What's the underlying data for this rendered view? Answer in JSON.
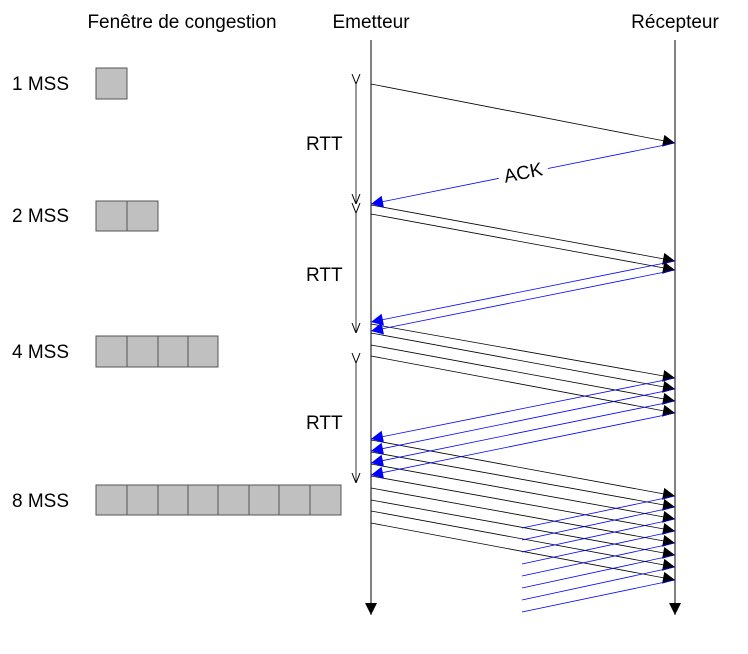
{
  "headers": {
    "window": "Fenêtre de congestion",
    "sender": "Emetteur",
    "receiver": "Récepteur"
  },
  "rounds": [
    {
      "label": "1 MSS",
      "segments": 1
    },
    {
      "label": "2 MSS",
      "segments": 2
    },
    {
      "label": "4 MSS",
      "segments": 4
    },
    {
      "label": "8 MSS",
      "segments": 8
    }
  ],
  "rtt_label": "RTT",
  "ack_label": "ACK",
  "colors": {
    "data_line": "#000000",
    "ack_line": "#0000ff",
    "segment_fill": "#c0c0c0",
    "segment_stroke": "#555555"
  }
}
